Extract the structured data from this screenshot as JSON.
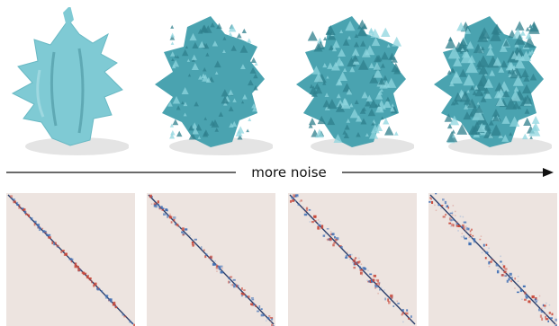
{
  "caption": {
    "arrow_label": "more noise"
  },
  "colors": {
    "shape_smooth": "#7fcad4",
    "shape_noisy": "#4aa3b0",
    "matrix_bg": "#ede4e0",
    "diag_red": "#c8483a",
    "diag_blue": "#3f6fb5"
  },
  "shapes": [
    {
      "name": "smooth-shape",
      "noise_level": 0
    },
    {
      "name": "noisy-shape-1",
      "noise_level": 1
    },
    {
      "name": "noisy-shape-2",
      "noise_level": 2
    },
    {
      "name": "noisy-shape-3",
      "noise_level": 3
    }
  ],
  "matrices": [
    {
      "name": "matrix-1",
      "noise_level": 0
    },
    {
      "name": "matrix-2",
      "noise_level": 1
    },
    {
      "name": "matrix-3",
      "noise_level": 2
    },
    {
      "name": "matrix-4",
      "noise_level": 3
    }
  ]
}
